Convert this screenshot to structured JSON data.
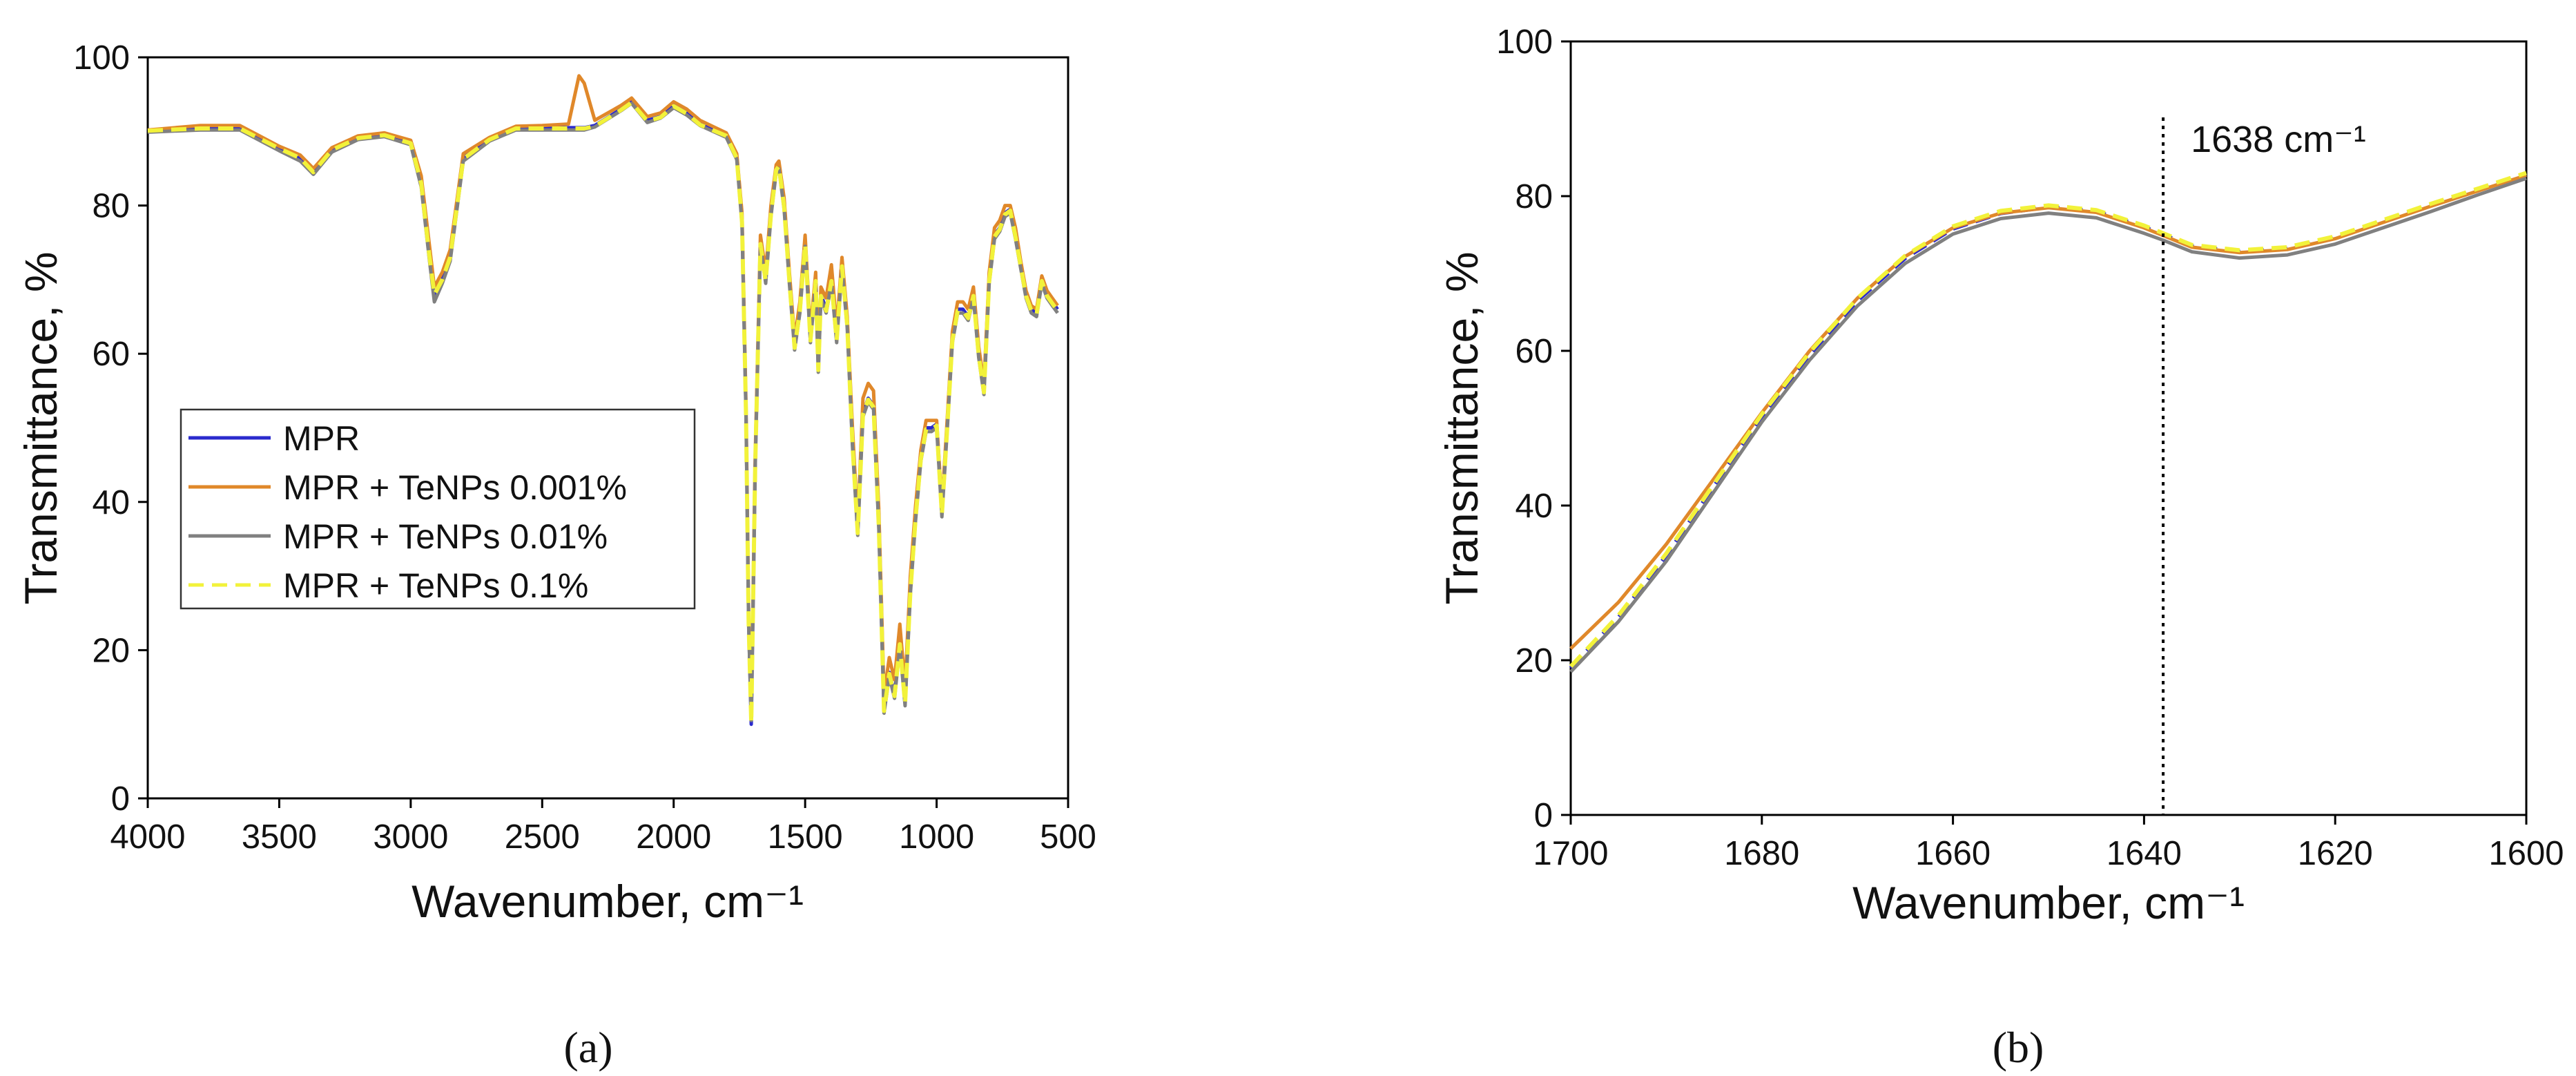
{
  "chart_data": [
    {
      "type": "line",
      "panel_label": "(a)",
      "xlabel": "Wavenumber, cm⁻¹",
      "ylabel": "Transmittance, %",
      "xlim": [
        4000,
        500
      ],
      "ylim": [
        0,
        100
      ],
      "x_reversed": true,
      "xticks": [
        "4000",
        "3500",
        "3000",
        "2500",
        "2000",
        "1500",
        "1000",
        "500"
      ],
      "yticks": [
        "0",
        "20",
        "40",
        "60",
        "80",
        "100"
      ],
      "xtick_values": [
        4000,
        3500,
        3000,
        2500,
        2000,
        1500,
        1000,
        500
      ],
      "ytick_values": [
        0,
        20,
        40,
        60,
        80,
        100
      ],
      "legend_position": "center-left",
      "legend": [
        "MPR",
        "MPR + TeNPs 0.001%",
        "MPR + TeNPs 0.01%",
        "MPR + TeNPs 0.1%"
      ],
      "x": [
        4000,
        3800,
        3650,
        3500,
        3420,
        3370,
        3300,
        3200,
        3100,
        3000,
        2960,
        2930,
        2910,
        2880,
        2850,
        2800,
        2700,
        2600,
        2500,
        2400,
        2360,
        2340,
        2300,
        2200,
        2160,
        2100,
        2050,
        2000,
        1950,
        1900,
        1800,
        1760,
        1740,
        1725,
        1715,
        1705,
        1690,
        1670,
        1650,
        1630,
        1610,
        1600,
        1580,
        1560,
        1540,
        1520,
        1500,
        1480,
        1460,
        1450,
        1440,
        1420,
        1400,
        1380,
        1360,
        1340,
        1320,
        1300,
        1280,
        1260,
        1240,
        1220,
        1200,
        1180,
        1160,
        1140,
        1120,
        1100,
        1080,
        1060,
        1040,
        1020,
        1000,
        980,
        960,
        940,
        920,
        900,
        880,
        860,
        840,
        820,
        800,
        780,
        760,
        740,
        720,
        700,
        680,
        660,
        640,
        620,
        600,
        580,
        560,
        540
      ],
      "series": [
        {
          "name": "MPR",
          "color": "#2a2acd",
          "dash": false,
          "values": [
            90.2,
            90.5,
            90.5,
            87.8,
            86.5,
            84.6,
            87.6,
            89.2,
            89.6,
            88.5,
            83.0,
            73.5,
            67.5,
            70.0,
            73.0,
            86.5,
            89.0,
            90.5,
            90.5,
            90.5,
            90.5,
            90.5,
            90.8,
            93.0,
            94.0,
            91.5,
            92.0,
            93.5,
            92.5,
            91.0,
            89.5,
            86.5,
            78.0,
            52.0,
            24.0,
            10.0,
            45.0,
            75.0,
            70.0,
            79.0,
            85.0,
            85.5,
            80.0,
            70.0,
            61.0,
            66.0,
            75.0,
            62.0,
            70.0,
            58.0,
            68.0,
            66.0,
            70.0,
            62.0,
            72.0,
            64.0,
            48.0,
            36.0,
            52.0,
            54.0,
            53.0,
            37.0,
            12.0,
            17.0,
            14.0,
            21.0,
            13.0,
            28.0,
            38.0,
            46.0,
            50.0,
            50.0,
            50.5,
            38.5,
            50.0,
            62.0,
            66.0,
            66.0,
            65.0,
            68.0,
            60.0,
            55.0,
            70.0,
            76.0,
            77.0,
            79.0,
            79.5,
            76.0,
            72.0,
            68.0,
            66.0,
            65.5,
            70.0,
            68.0,
            67.0,
            66.0
          ]
        },
        {
          "name": "MPR + TeNPs 0.001%",
          "color": "#e0882a",
          "dash": false,
          "values": [
            90.2,
            90.8,
            90.8,
            88.0,
            86.8,
            85.0,
            87.8,
            89.4,
            89.8,
            88.8,
            84.0,
            75.0,
            69.0,
            71.0,
            74.0,
            87.0,
            89.2,
            90.7,
            90.8,
            91.0,
            97.5,
            96.5,
            91.5,
            93.5,
            94.5,
            92.0,
            92.5,
            94.0,
            93.0,
            91.5,
            89.8,
            87.0,
            79.0,
            53.0,
            25.0,
            11.0,
            46.0,
            76.0,
            71.0,
            80.0,
            85.5,
            86.0,
            81.0,
            71.0,
            62.0,
            67.0,
            76.0,
            63.0,
            71.0,
            59.0,
            69.0,
            67.5,
            72.0,
            63.5,
            73.0,
            65.0,
            50.0,
            37.0,
            54.0,
            56.0,
            55.0,
            39.0,
            14.0,
            19.0,
            16.0,
            23.5,
            15.0,
            30.0,
            39.5,
            47.0,
            51.0,
            51.0,
            51.0,
            39.5,
            51.0,
            63.0,
            67.0,
            67.0,
            66.0,
            69.0,
            61.0,
            56.0,
            71.0,
            77.0,
            78.0,
            80.0,
            80.0,
            77.0,
            72.5,
            68.5,
            66.5,
            66.0,
            70.5,
            68.5,
            67.5,
            66.5
          ]
        },
        {
          "name": "MPR + TeNPs 0.01%",
          "color": "#808080",
          "dash": false,
          "values": [
            89.9,
            90.2,
            90.2,
            87.4,
            86.0,
            84.2,
            87.2,
            88.9,
            89.3,
            88.2,
            82.5,
            73.0,
            67.0,
            69.5,
            72.5,
            86.0,
            88.7,
            90.2,
            90.2,
            90.2,
            90.2,
            90.2,
            90.6,
            92.8,
            93.8,
            91.2,
            91.8,
            93.2,
            92.2,
            90.8,
            89.2,
            86.2,
            77.5,
            51.5,
            23.5,
            10.5,
            44.5,
            74.5,
            69.5,
            78.5,
            84.5,
            85.0,
            79.5,
            69.5,
            60.5,
            65.5,
            74.5,
            61.5,
            69.5,
            57.5,
            67.5,
            65.5,
            69.5,
            61.5,
            71.5,
            63.5,
            47.5,
            35.5,
            51.5,
            53.5,
            52.5,
            36.5,
            11.5,
            16.5,
            13.5,
            20.5,
            12.5,
            27.5,
            37.5,
            45.5,
            49.5,
            49.5,
            50.0,
            38.0,
            49.5,
            61.5,
            65.5,
            65.5,
            64.5,
            67.5,
            59.5,
            54.5,
            69.5,
            75.5,
            76.5,
            78.5,
            79.0,
            75.5,
            71.5,
            67.5,
            65.5,
            65.0,
            69.5,
            67.5,
            66.5,
            65.5
          ]
        },
        {
          "name": "MPR + TeNPs 0.1%",
          "color": "#f2f23a",
          "dash": true,
          "values": [
            90.1,
            90.4,
            90.4,
            87.7,
            86.4,
            84.5,
            87.5,
            89.1,
            89.5,
            88.4,
            83.0,
            73.5,
            68.0,
            70.0,
            73.0,
            86.3,
            88.9,
            90.4,
            90.4,
            90.4,
            90.4,
            90.4,
            90.7,
            92.9,
            93.9,
            91.4,
            91.9,
            93.4,
            92.4,
            90.9,
            89.4,
            86.4,
            77.8,
            51.8,
            23.8,
            10.2,
            44.8,
            74.8,
            69.8,
            78.8,
            84.8,
            85.3,
            79.8,
            69.8,
            60.8,
            65.8,
            74.8,
            61.8,
            69.8,
            57.8,
            67.8,
            65.8,
            69.8,
            61.8,
            71.8,
            63.8,
            47.8,
            35.8,
            51.8,
            53.8,
            52.8,
            36.8,
            11.8,
            16.8,
            13.8,
            20.8,
            12.8,
            27.8,
            37.8,
            45.8,
            49.8,
            49.8,
            50.3,
            38.3,
            49.8,
            61.8,
            65.8,
            65.8,
            64.8,
            67.8,
            59.8,
            54.8,
            69.8,
            75.8,
            76.8,
            78.8,
            79.3,
            75.8,
            71.8,
            67.8,
            65.8,
            65.3,
            69.8,
            67.8,
            66.8,
            65.8
          ]
        }
      ]
    },
    {
      "type": "line",
      "panel_label": "(b)",
      "xlabel": "Wavenumber, cm⁻¹",
      "ylabel": "Transmittance, %",
      "xlim": [
        1700,
        1600
      ],
      "ylim": [
        0,
        100
      ],
      "x_reversed": true,
      "xticks": [
        "1700",
        "1680",
        "1660",
        "1640",
        "1620",
        "1600"
      ],
      "yticks": [
        "0",
        "20",
        "40",
        "60",
        "80",
        "100"
      ],
      "xtick_values": [
        1700,
        1680,
        1660,
        1640,
        1620,
        1600
      ],
      "ytick_values": [
        0,
        20,
        40,
        60,
        80,
        100
      ],
      "annotation": {
        "x": 1638,
        "label": "1638 cm⁻¹",
        "style": "dotted vertical line"
      },
      "x": [
        1700,
        1695,
        1690,
        1685,
        1680,
        1675,
        1670,
        1665,
        1660,
        1655,
        1650,
        1645,
        1640,
        1638,
        1635,
        1630,
        1625,
        1620,
        1615,
        1610,
        1605,
        1600
      ],
      "series": [
        {
          "name": "MPR",
          "color": "#2a2acd",
          "dash": true,
          "values": [
            19.0,
            25.5,
            33.5,
            42.5,
            51.5,
            59.5,
            66.5,
            72.0,
            75.8,
            77.8,
            78.6,
            78.0,
            76.0,
            75.0,
            73.5,
            72.8,
            73.2,
            74.6,
            76.7,
            78.8,
            80.8,
            82.8
          ]
        },
        {
          "name": "MPR + TeNPs 0.001%",
          "color": "#e0882a",
          "dash": false,
          "values": [
            21.5,
            27.5,
            35.0,
            43.5,
            52.0,
            60.0,
            66.8,
            72.2,
            75.9,
            77.8,
            78.5,
            77.9,
            75.9,
            74.9,
            73.4,
            72.7,
            73.1,
            74.5,
            76.6,
            78.7,
            80.7,
            82.7
          ]
        },
        {
          "name": "MPR + TeNPs 0.01%",
          "color": "#808080",
          "dash": false,
          "values": [
            18.5,
            25.0,
            32.8,
            41.8,
            50.8,
            58.8,
            65.8,
            71.3,
            75.1,
            77.1,
            77.8,
            77.2,
            75.2,
            74.3,
            72.8,
            72.0,
            72.4,
            73.8,
            75.9,
            78.0,
            80.2,
            82.3
          ]
        },
        {
          "name": "MPR + TeNPs 0.1%",
          "color": "#f2f23a",
          "dash": true,
          "values": [
            19.2,
            25.8,
            33.8,
            42.8,
            51.8,
            59.8,
            66.8,
            72.3,
            76.1,
            78.1,
            78.8,
            78.2,
            76.2,
            75.2,
            73.7,
            73.0,
            73.4,
            74.8,
            76.9,
            79.0,
            81.0,
            83.0
          ]
        }
      ]
    }
  ]
}
